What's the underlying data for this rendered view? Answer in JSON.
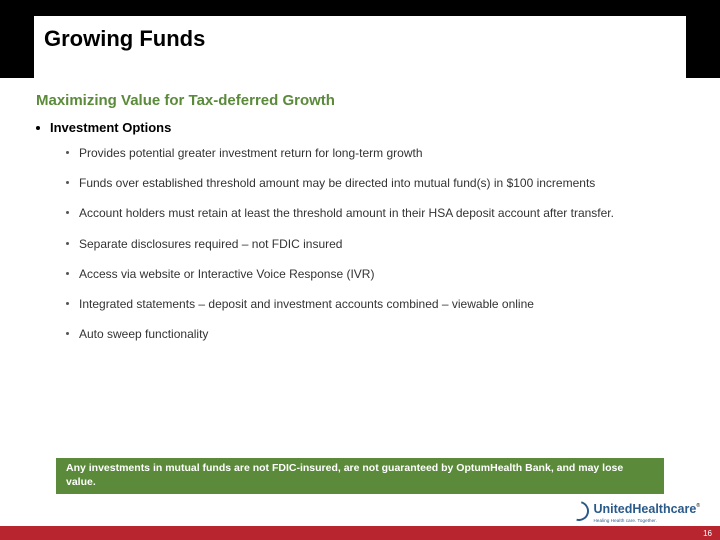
{
  "colors": {
    "top_bar": "#000000",
    "subtitle": "#5a8a3a",
    "disclaimer_bg": "#5a8a3a",
    "bottom_bar": "#b8252e",
    "logo": "#2a5a8a",
    "background": "#ffffff"
  },
  "slide": {
    "title": "Growing Funds",
    "subtitle": "Maximizing Value for Tax-deferred Growth",
    "section_heading": "Investment Options",
    "bullets": [
      "Provides potential greater investment return for long-term growth",
      "Funds over established threshold amount may be directed into mutual fund(s) in $100 increments",
      "Account holders must retain at least the threshold amount in their HSA deposit account after transfer.",
      "Separate disclosures required – not FDIC insured",
      "Access via website or Interactive Voice Response (IVR)",
      "Integrated statements – deposit and investment accounts combined – viewable online",
      "Auto sweep functionality"
    ],
    "disclaimer": "Any investments in mutual funds are not FDIC-insured, are not guaranteed by OptumHealth Bank, and may lose value.",
    "logo_text": "UnitedHealthcare",
    "logo_sub": "Healing Health care. Together.",
    "logo_r": "®",
    "page_number": "16"
  }
}
